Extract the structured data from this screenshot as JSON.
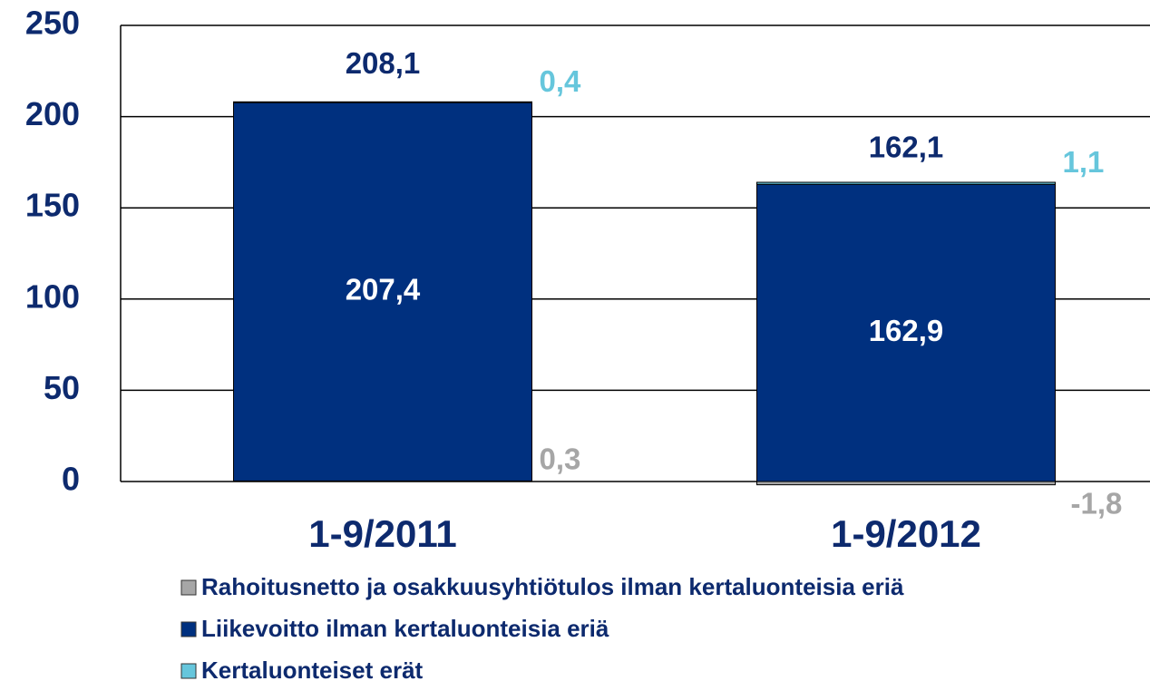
{
  "chart_data": {
    "type": "stacked_bar",
    "categories": [
      "1-9/2011",
      "1-9/2012"
    ],
    "series": [
      {
        "name": "Rahoitusnetto ja osakkuusyhtiötulos ilman kertaluonteisia eriä",
        "color": "#a6a6a6",
        "values": [
          0.3,
          -1.8
        ],
        "value_labels": [
          "0,3",
          "-1,8"
        ]
      },
      {
        "name": "Liikevoitto ilman kertaluonteisia eriä",
        "color": "#00307f",
        "values": [
          207.4,
          162.9
        ],
        "value_labels": [
          "207,4",
          "162,9"
        ]
      },
      {
        "name": "Kertaluonteiset erät",
        "color": "#66c6dc",
        "values": [
          0.4,
          1.1
        ],
        "value_labels": [
          "0,4",
          "1,1"
        ]
      }
    ],
    "totals": [
      208.1,
      162.1
    ],
    "total_labels": [
      "208,1",
      "162,1"
    ],
    "ylim": [
      0,
      250
    ],
    "yticks": [
      0,
      50,
      100,
      150,
      200,
      250
    ],
    "grid": true
  }
}
